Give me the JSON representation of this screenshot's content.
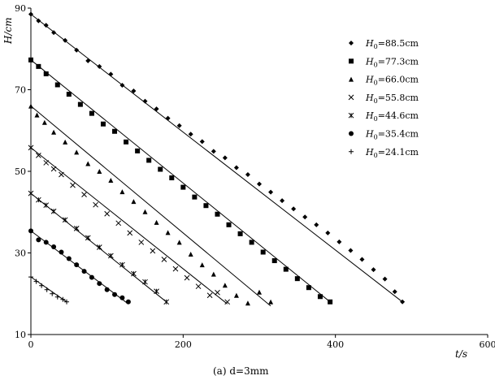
{
  "chart_data": {
    "type": "scatter",
    "xlabel": "t/s",
    "ylabel": "H/cm",
    "xlim": [
      0,
      600
    ],
    "ylim": [
      10,
      90
    ],
    "x_ticks": [
      "0",
      "200",
      "400",
      "600"
    ],
    "y_ticks": [
      "10",
      "30",
      "50",
      "70",
      "90"
    ],
    "grid": false,
    "legend_position": "top-right",
    "caption": "(a) d=3mm",
    "series": [
      {
        "name": "H0=88.5cm",
        "legend_main": "H",
        "legend_sub": "0",
        "legend_rest": "=88.5cm",
        "marker": "diamond",
        "x": [
          0,
          10,
          20,
          30,
          45,
          60,
          75,
          90,
          105,
          120,
          135,
          150,
          165,
          180,
          195,
          210,
          225,
          240,
          255,
          270,
          285,
          300,
          315,
          330,
          345,
          360,
          375,
          390,
          405,
          420,
          435,
          450,
          465,
          478,
          488
        ],
        "y": [
          88.5,
          86.9,
          85.8,
          84.0,
          82.1,
          79.7,
          77.1,
          75.7,
          73.8,
          71.1,
          69.7,
          67.2,
          65.3,
          63.0,
          61.2,
          59.1,
          57.3,
          54.9,
          53.3,
          50.9,
          49.2,
          46.9,
          44.9,
          42.8,
          40.8,
          38.8,
          36.9,
          34.9,
          32.7,
          30.6,
          28.4,
          25.9,
          23.6,
          20.5,
          18.0
        ],
        "fit": [
          [
            0,
            88.5
          ],
          [
            488,
            18.0
          ]
        ]
      },
      {
        "name": "H0=77.3cm",
        "legend_main": "H",
        "legend_sub": "0",
        "legend_rest": "=77.3cm",
        "marker": "square",
        "x": [
          0,
          10,
          20,
          35,
          50,
          65,
          80,
          95,
          110,
          125,
          140,
          155,
          170,
          185,
          200,
          215,
          230,
          245,
          260,
          275,
          290,
          305,
          320,
          335,
          350,
          365,
          380,
          393
        ],
        "y": [
          77.3,
          75.7,
          73.9,
          71.2,
          68.9,
          66.4,
          64.2,
          61.6,
          59.8,
          57.2,
          55.0,
          52.7,
          50.5,
          48.4,
          46.1,
          43.7,
          41.6,
          39.5,
          36.9,
          34.7,
          32.6,
          30.2,
          28.1,
          26.0,
          23.7,
          21.5,
          19.3,
          18.0
        ],
        "fit": [
          [
            0,
            77.3
          ],
          [
            393,
            18.0
          ]
        ]
      },
      {
        "name": "H0=66.0cm",
        "legend_main": "H",
        "legend_sub": "0",
        "legend_rest": "=66.0cm",
        "marker": "triangle",
        "x": [
          0,
          8,
          18,
          30,
          45,
          60,
          75,
          90,
          105,
          120,
          135,
          150,
          165,
          180,
          195,
          210,
          225,
          240,
          255,
          270,
          285,
          300,
          315
        ],
        "y": [
          66.0,
          63.8,
          62.0,
          59.6,
          57.2,
          54.7,
          51.9,
          50.0,
          47.8,
          45.0,
          42.6,
          40.1,
          37.5,
          35.0,
          32.6,
          29.7,
          27.1,
          24.8,
          22.1,
          19.6,
          17.7,
          20.4,
          18.0
        ],
        "fit": [
          [
            0,
            66.0
          ],
          [
            315,
            17.0
          ]
        ]
      },
      {
        "name": "H0=55.8cm",
        "legend_main": "H",
        "legend_sub": "0",
        "legend_rest": "=55.8cm",
        "marker": "x",
        "x": [
          0,
          10,
          20,
          30,
          40,
          55,
          70,
          85,
          100,
          115,
          130,
          145,
          160,
          175,
          190,
          205,
          220,
          235,
          245,
          258
        ],
        "y": [
          55.8,
          53.9,
          52.1,
          50.6,
          49.2,
          46.6,
          44.3,
          41.8,
          39.6,
          37.3,
          34.9,
          32.6,
          30.5,
          28.4,
          26.1,
          23.9,
          21.8,
          19.6,
          20.3,
          18.0
        ],
        "fit": [
          [
            0,
            55.8
          ],
          [
            258,
            17.5
          ]
        ]
      },
      {
        "name": "H0=44.6cm",
        "legend_main": "H",
        "legend_sub": "0",
        "legend_rest": "=44.6cm",
        "marker": "star",
        "x": [
          0,
          10,
          20,
          30,
          45,
          60,
          75,
          90,
          105,
          120,
          135,
          150,
          165,
          178
        ],
        "y": [
          44.6,
          43.0,
          41.7,
          40.2,
          38.1,
          36.0,
          33.7,
          31.4,
          29.3,
          27.1,
          24.9,
          22.9,
          20.6,
          18.0
        ],
        "fit": [
          [
            0,
            44.6
          ],
          [
            178,
            18.0
          ]
        ]
      },
      {
        "name": "H0=35.4cm",
        "legend_main": "H",
        "legend_sub": "0",
        "legend_rest": "=35.4cm",
        "marker": "circle",
        "x": [
          0,
          10,
          20,
          30,
          40,
          50,
          60,
          70,
          80,
          90,
          100,
          110,
          120,
          128
        ],
        "y": [
          35.4,
          33.2,
          32.6,
          31.5,
          30.2,
          28.6,
          27.1,
          25.5,
          24.0,
          22.5,
          21.0,
          19.8,
          19.0,
          18.0
        ],
        "fit": [
          [
            0,
            35.4
          ],
          [
            128,
            17.5
          ]
        ]
      },
      {
        "name": "H0=24.1cm",
        "legend_main": "H",
        "legend_sub": "0",
        "legend_rest": "=24.1cm",
        "marker": "plus",
        "x": [
          0,
          7,
          14,
          21,
          28,
          35,
          42,
          47
        ],
        "y": [
          24.1,
          23.0,
          22.0,
          21.0,
          20.0,
          19.2,
          18.6,
          18.0
        ],
        "fit": [
          [
            0,
            24.1
          ],
          [
            47,
            18.0
          ]
        ]
      }
    ]
  }
}
